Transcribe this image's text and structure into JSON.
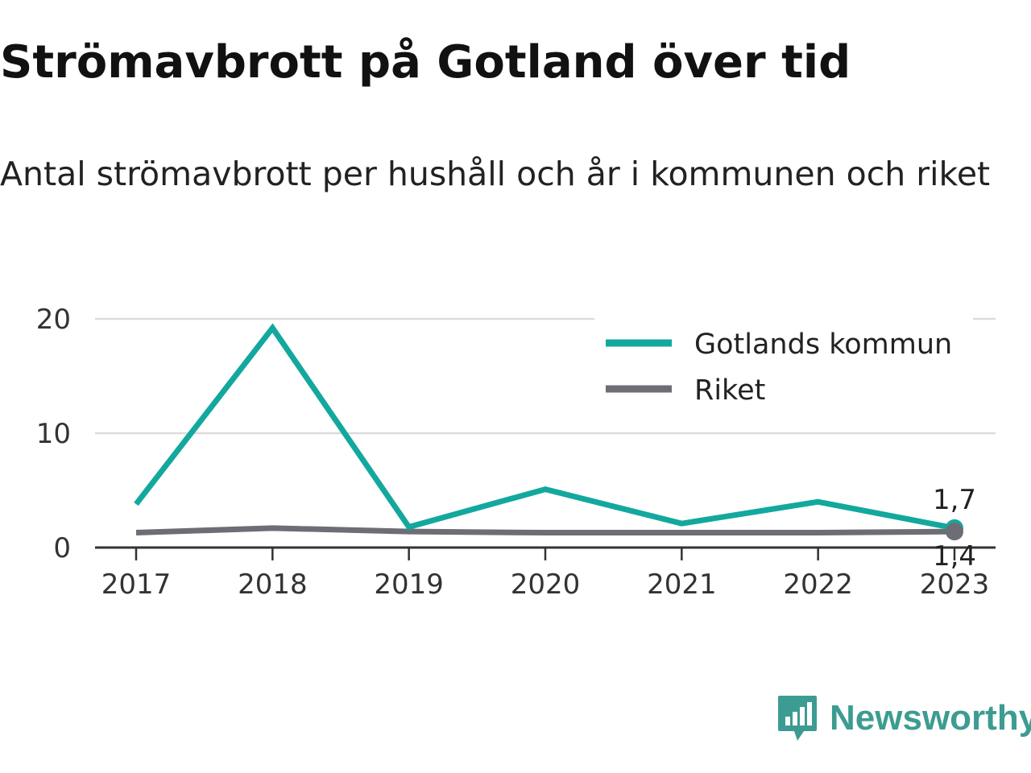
{
  "header": {
    "title": "Strömavbrott på Gotland över tid",
    "subtitle": "Antal strömavbrott per hushåll och år i kommunen och riket"
  },
  "brand": {
    "name": "Newsworthy",
    "color": "#3d9c91",
    "icon": "newsworthy-logo-icon"
  },
  "colors": {
    "gotland": "#13a89e",
    "riket": "#6d6d76",
    "grid": "#dcdcdc",
    "axis": "#333333"
  },
  "chart_data": {
    "type": "line",
    "title": "",
    "xlabel": "",
    "ylabel": "",
    "categories": [
      "2017",
      "2018",
      "2019",
      "2020",
      "2021",
      "2022",
      "2023"
    ],
    "ylim": [
      0,
      20
    ],
    "yticks": [
      0,
      10,
      20
    ],
    "grid": true,
    "legend_position": "top-right",
    "series": [
      {
        "name": "Gotlands kommun",
        "color": "#13a89e",
        "values": [
          3.8,
          19.2,
          1.8,
          5.1,
          2.1,
          4.0,
          1.7
        ],
        "end_label": "1,7"
      },
      {
        "name": "Riket",
        "color": "#6d6d76",
        "values": [
          1.3,
          1.7,
          1.4,
          1.3,
          1.3,
          1.3,
          1.4
        ],
        "end_label": "1,4"
      }
    ]
  }
}
